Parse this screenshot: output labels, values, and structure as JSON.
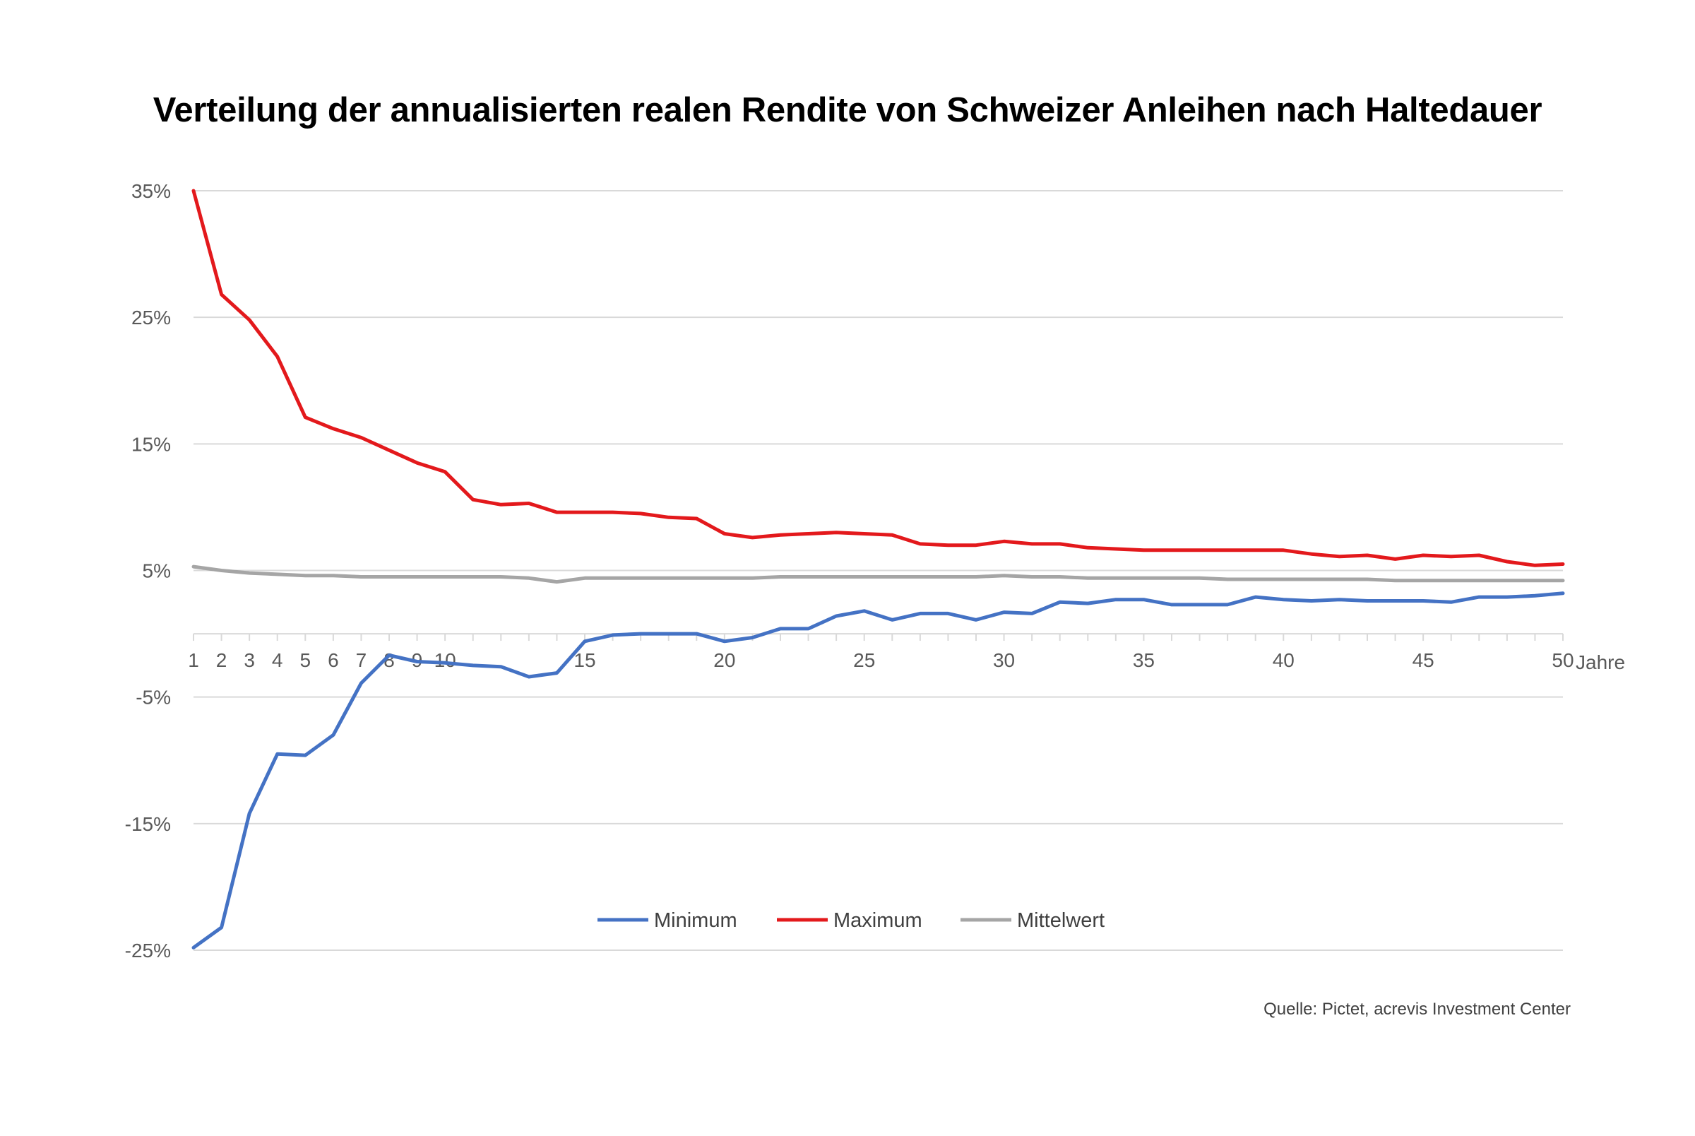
{
  "chart_data": {
    "type": "line",
    "title": "Verteilung der annualisierten realen Rendite von Schweizer Anleihen nach Haltedauer",
    "xlabel": "Jahre",
    "ylabel": "",
    "x": [
      1,
      2,
      3,
      4,
      5,
      6,
      7,
      8,
      9,
      10,
      11,
      12,
      13,
      14,
      15,
      16,
      17,
      18,
      19,
      20,
      21,
      22,
      23,
      24,
      25,
      26,
      27,
      28,
      29,
      30,
      31,
      32,
      33,
      34,
      35,
      36,
      37,
      38,
      39,
      40,
      41,
      42,
      43,
      44,
      45,
      46,
      47,
      48,
      49,
      50
    ],
    "x_tick_labels": [
      "1",
      "2",
      "3",
      "4",
      "5",
      "6",
      "7",
      "8",
      "9",
      "10",
      "15",
      "20",
      "25",
      "30",
      "35",
      "40",
      "45",
      "50"
    ],
    "x_tick_values": [
      1,
      2,
      3,
      4,
      5,
      6,
      7,
      8,
      9,
      10,
      15,
      20,
      25,
      30,
      35,
      40,
      45,
      50
    ],
    "ylim": [
      -25,
      35
    ],
    "y_tick_values": [
      35,
      25,
      15,
      5,
      -5,
      -15,
      -25
    ],
    "y_tick_labels": [
      "35%",
      "25%",
      "15%",
      "5%",
      "-5%",
      "-15%",
      "-25%"
    ],
    "grid": true,
    "legend_position": "bottom-center",
    "series": [
      {
        "name": "Minimum",
        "color": "#4472C4",
        "values": [
          -24.8,
          -23.2,
          -14.2,
          -9.5,
          -9.6,
          -8.0,
          -3.9,
          -1.7,
          -2.2,
          -2.3,
          -2.5,
          -2.6,
          -3.4,
          -3.1,
          -0.6,
          -0.1,
          0.0,
          0.0,
          0.0,
          -0.6,
          -0.3,
          0.4,
          0.4,
          1.4,
          1.8,
          1.1,
          1.6,
          1.6,
          1.1,
          1.7,
          1.6,
          2.5,
          2.4,
          2.7,
          2.7,
          2.3,
          2.3,
          2.3,
          2.9,
          2.7,
          2.6,
          2.7,
          2.6,
          2.6,
          2.6,
          2.5,
          2.9,
          2.9,
          3.0,
          3.2
        ]
      },
      {
        "name": "Maximum",
        "color": "#E3191C",
        "values": [
          35.0,
          26.8,
          24.8,
          21.9,
          17.1,
          16.2,
          15.5,
          14.5,
          13.5,
          12.8,
          10.6,
          10.2,
          10.3,
          9.6,
          9.6,
          9.6,
          9.5,
          9.2,
          9.1,
          7.9,
          7.6,
          7.8,
          7.9,
          8.0,
          7.9,
          7.8,
          7.1,
          7.0,
          7.0,
          7.3,
          7.1,
          7.1,
          6.8,
          6.7,
          6.6,
          6.6,
          6.6,
          6.6,
          6.6,
          6.6,
          6.3,
          6.1,
          6.2,
          5.9,
          6.2,
          6.1,
          6.2,
          5.7,
          5.4,
          5.5
        ]
      },
      {
        "name": "Mittelwert",
        "color": "#A5A5A5",
        "values": [
          5.3,
          5.0,
          4.8,
          4.7,
          4.6,
          4.6,
          4.5,
          4.5,
          4.5,
          4.5,
          4.5,
          4.5,
          4.4,
          4.1,
          4.4,
          4.4,
          4.4,
          4.4,
          4.4,
          4.4,
          4.4,
          4.5,
          4.5,
          4.5,
          4.5,
          4.5,
          4.5,
          4.5,
          4.5,
          4.6,
          4.5,
          4.5,
          4.4,
          4.4,
          4.4,
          4.4,
          4.4,
          4.3,
          4.3,
          4.3,
          4.3,
          4.3,
          4.3,
          4.2,
          4.2,
          4.2,
          4.2,
          4.2,
          4.2,
          4.2
        ]
      }
    ],
    "source": "Quelle: Pictet, acrevis Investment Center"
  }
}
